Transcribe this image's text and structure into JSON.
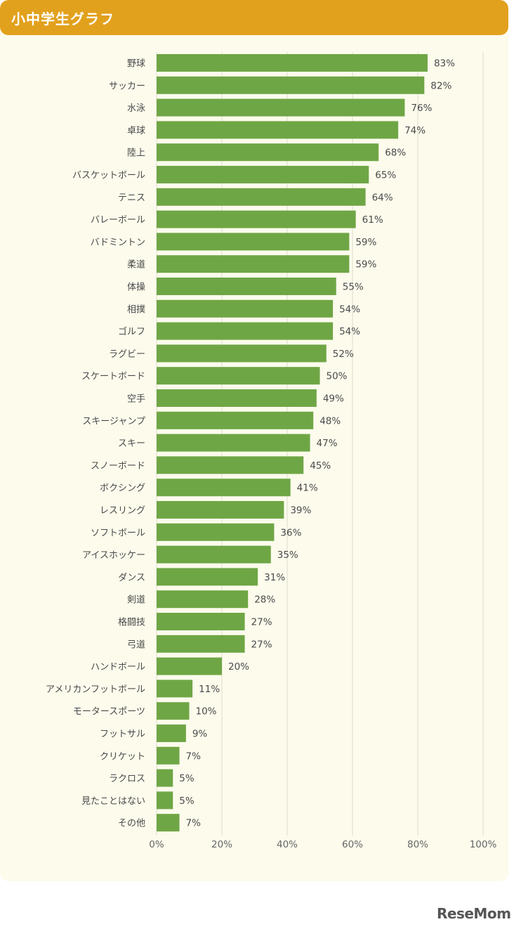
{
  "header": {
    "title": "小中学生グラフ"
  },
  "logo": {
    "text": "ReseMom"
  },
  "chart_data": {
    "type": "bar",
    "orientation": "horizontal",
    "categories": [
      "野球",
      "サッカー",
      "水泳",
      "卓球",
      "陸上",
      "バスケットボール",
      "テニス",
      "バレーボール",
      "バドミントン",
      "柔道",
      "体操",
      "相撲",
      "ゴルフ",
      "ラグビー",
      "スケートボード",
      "空手",
      "スキージャンプ",
      "スキー",
      "スノーボード",
      "ボクシング",
      "レスリング",
      "ソフトボール",
      "アイスホッケー",
      "ダンス",
      "剣道",
      "格闘技",
      "弓道",
      "ハンドボール",
      "アメリカンフットボール",
      "モータースポーツ",
      "フットサル",
      "クリケット",
      "ラクロス",
      "見たことはない",
      "その他"
    ],
    "values": [
      83,
      82,
      76,
      74,
      68,
      65,
      64,
      61,
      59,
      59,
      55,
      54,
      54,
      52,
      50,
      49,
      48,
      47,
      45,
      41,
      39,
      36,
      35,
      31,
      28,
      27,
      27,
      20,
      11,
      10,
      9,
      7,
      5,
      5,
      7
    ],
    "value_labels": [
      "83%",
      "82%",
      "76%",
      "74%",
      "68%",
      "65%",
      "64%",
      "61%",
      "59%",
      "59%",
      "55%",
      "54%",
      "54%",
      "52%",
      "50%",
      "49%",
      "48%",
      "47%",
      "45%",
      "41%",
      "39%",
      "36%",
      "35%",
      "31%",
      "28%",
      "27%",
      "27%",
      "20%",
      "11%",
      "10%",
      "9%",
      "7%",
      "5%",
      "5%",
      "7%"
    ],
    "xlim": [
      0,
      100
    ],
    "x_ticks": [
      "0%",
      "20%",
      "40%",
      "60%",
      "80%",
      "100%"
    ],
    "grid": true,
    "bar_color": "#6fa645",
    "title": "小中学生グラフ",
    "xlabel": "",
    "ylabel": ""
  }
}
